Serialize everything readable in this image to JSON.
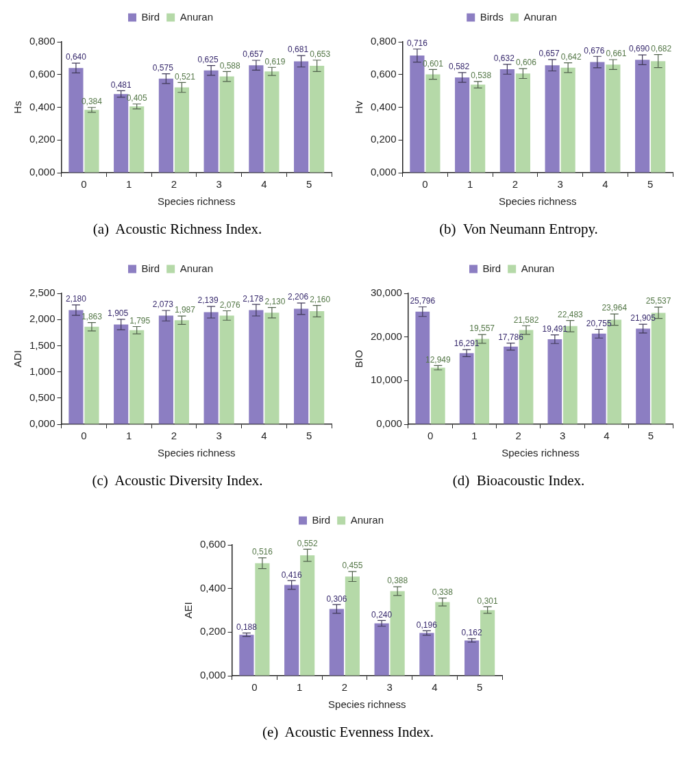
{
  "chart_data": [
    {
      "type": "bar",
      "xlabel": "Species richness",
      "ylabel": "Hs",
      "categories": [
        "0",
        "1",
        "2",
        "3",
        "4",
        "5"
      ],
      "legend": "top",
      "ylim": [
        0,
        0.8
      ],
      "yticks": [
        {
          "value": 0,
          "label": "0,000"
        },
        {
          "value": 0.2,
          "label": "0,200"
        },
        {
          "value": 0.4,
          "label": "0,400"
        },
        {
          "value": 0.6,
          "label": "0,600"
        },
        {
          "value": 0.8,
          "label": "0,800"
        }
      ],
      "annotations": [
        "(a)  Acoustic Richness Index."
      ],
      "series": [
        {
          "name": "Bird",
          "color": "#8c7ec2",
          "values": [
            0.64,
            0.481,
            0.575,
            0.625,
            0.657,
            0.681
          ],
          "errors": [
            0.03,
            0.02,
            0.03,
            0.03,
            0.03,
            0.035
          ],
          "value_labels": [
            "0,640",
            "0,481",
            "0,575",
            "0,625",
            "0,657",
            "0,681"
          ]
        },
        {
          "name": "Anuran",
          "color": "#b5d9a8",
          "values": [
            0.384,
            0.405,
            0.521,
            0.588,
            0.619,
            0.653
          ],
          "errors": [
            0.015,
            0.015,
            0.03,
            0.03,
            0.025,
            0.035
          ],
          "value_labels": [
            "0,384",
            "0,405",
            "0,521",
            "0,588",
            "0,619",
            "0,653"
          ]
        }
      ]
    },
    {
      "type": "bar",
      "xlabel": "Species richness",
      "ylabel": "Hv",
      "categories": [
        "0",
        "1",
        "2",
        "3",
        "4",
        "5"
      ],
      "legend": "top",
      "ylim": [
        0,
        0.8
      ],
      "yticks": [
        {
          "value": 0,
          "label": "0,000"
        },
        {
          "value": 0.2,
          "label": "0,200"
        },
        {
          "value": 0.4,
          "label": "0,400"
        },
        {
          "value": 0.6,
          "label": "0,600"
        },
        {
          "value": 0.8,
          "label": "0,800"
        }
      ],
      "annotations": [
        "(b)  Von Neumann Entropy."
      ],
      "series": [
        {
          "name": "Birds",
          "color": "#8c7ec2",
          "values": [
            0.716,
            0.582,
            0.632,
            0.657,
            0.676,
            0.69
          ],
          "errors": [
            0.04,
            0.03,
            0.03,
            0.035,
            0.035,
            0.03
          ],
          "value_labels": [
            "0,716",
            "0,582",
            "0,632",
            "0,657",
            "0,676",
            "0,690"
          ]
        },
        {
          "name": "Anuran",
          "color": "#b5d9a8",
          "values": [
            0.601,
            0.538,
            0.606,
            0.642,
            0.661,
            0.682
          ],
          "errors": [
            0.03,
            0.02,
            0.03,
            0.03,
            0.03,
            0.04
          ],
          "value_labels": [
            "0,601",
            "0,538",
            "0,606",
            "0,642",
            "0,661",
            "0,682"
          ]
        }
      ]
    },
    {
      "type": "bar",
      "xlabel": "Species richness",
      "ylabel": "ADI",
      "categories": [
        "0",
        "1",
        "2",
        "3",
        "4",
        "5"
      ],
      "legend": "top",
      "ylim": [
        0,
        2.5
      ],
      "yticks": [
        {
          "value": 0,
          "label": "0,000"
        },
        {
          "value": 0.5,
          "label": "0,500"
        },
        {
          "value": 1,
          "label": "1,000"
        },
        {
          "value": 1.5,
          "label": "1,500"
        },
        {
          "value": 2,
          "label": "2,000"
        },
        {
          "value": 2.5,
          "label": "2,500"
        }
      ],
      "annotations": [
        "(c)  Acoustic Diversity Index."
      ],
      "series": [
        {
          "name": "Bird",
          "color": "#8c7ec2",
          "values": [
            2.18,
            1.905,
            2.073,
            2.139,
            2.178,
            2.206
          ],
          "errors": [
            0.1,
            0.1,
            0.1,
            0.11,
            0.11,
            0.11
          ],
          "value_labels": [
            "2,180",
            "1,905",
            "2,073",
            "2,139",
            "2,178",
            "2,206"
          ]
        },
        {
          "name": "Anuran",
          "color": "#b5d9a8",
          "values": [
            1.863,
            1.795,
            1.987,
            2.076,
            2.13,
            2.16
          ],
          "errors": [
            0.08,
            0.07,
            0.08,
            0.09,
            0.1,
            0.11
          ],
          "value_labels": [
            "1,863",
            "1,795",
            "1,987",
            "2,076",
            "2,130",
            "2,160"
          ]
        }
      ]
    },
    {
      "type": "bar",
      "xlabel": "Species richness",
      "ylabel": "BIO",
      "categories": [
        "0",
        "1",
        "2",
        "3",
        "4",
        "5"
      ],
      "legend": "top",
      "ylim": [
        0,
        30
      ],
      "yticks": [
        {
          "value": 0,
          "label": "0,000"
        },
        {
          "value": 10,
          "label": "10,000"
        },
        {
          "value": 20,
          "label": "20,000"
        },
        {
          "value": 30,
          "label": "30,000"
        }
      ],
      "annotations": [
        "(d)  Bioacoustic Index."
      ],
      "series": [
        {
          "name": "Bird",
          "color": "#8c7ec2",
          "values": [
            25.796,
            16.291,
            17.786,
            19.491,
            20.755,
            21.905
          ],
          "errors": [
            1.1,
            0.8,
            0.8,
            1.0,
            1.0,
            1.0
          ],
          "value_labels": [
            "25,796",
            "16,291",
            "17,786",
            "19,491",
            "20,755",
            "21,905"
          ]
        },
        {
          "name": "Anuran",
          "color": "#b5d9a8",
          "values": [
            12.949,
            19.557,
            21.582,
            22.483,
            23.964,
            25.537
          ],
          "errors": [
            0.5,
            1.0,
            1.0,
            1.3,
            1.3,
            1.3
          ],
          "value_labels": [
            "12,949",
            "19,557",
            "21,582",
            "22,483",
            "23,964",
            "25,537"
          ]
        }
      ]
    },
    {
      "type": "bar",
      "xlabel": "Species richness",
      "ylabel": "AEI",
      "categories": [
        "0",
        "1",
        "2",
        "3",
        "4",
        "5"
      ],
      "legend": "top",
      "ylim": [
        0,
        0.6
      ],
      "yticks": [
        {
          "value": 0,
          "label": "0,000"
        },
        {
          "value": 0.2,
          "label": "0,200"
        },
        {
          "value": 0.4,
          "label": "0,400"
        },
        {
          "value": 0.6,
          "label": "0,600"
        }
      ],
      "annotations": [
        "(e)  Acoustic Evenness Index."
      ],
      "series": [
        {
          "name": "Bird",
          "color": "#8c7ec2",
          "values": [
            0.188,
            0.416,
            0.306,
            0.24,
            0.196,
            0.162
          ],
          "errors": [
            0.008,
            0.02,
            0.02,
            0.013,
            0.01,
            0.008
          ],
          "value_labels": [
            "0,188",
            "0,416",
            "0,306",
            "0,240",
            "0,196",
            "0,162"
          ]
        },
        {
          "name": "Anuran",
          "color": "#b5d9a8",
          "values": [
            0.516,
            0.552,
            0.455,
            0.388,
            0.338,
            0.301
          ],
          "errors": [
            0.025,
            0.028,
            0.023,
            0.02,
            0.018,
            0.015
          ],
          "value_labels": [
            "0,516",
            "0,552",
            "0,455",
            "0,388",
            "0,338",
            "0,301"
          ]
        }
      ]
    }
  ]
}
